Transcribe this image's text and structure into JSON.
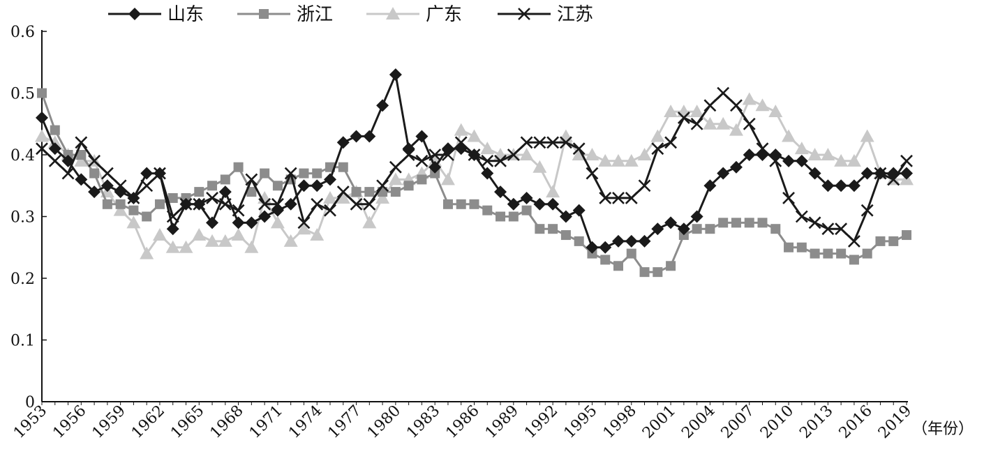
{
  "chart_data": {
    "type": "line",
    "title": "",
    "xlabel": "",
    "x_unit_label": "（年份）",
    "ylabel": "",
    "ylim": [
      0,
      0.6
    ],
    "yticks": [
      "0",
      "0.1",
      "0.2",
      "0.3",
      "0.4",
      "0.5",
      "0.6"
    ],
    "xticks": [
      "1953",
      "1956",
      "1959",
      "1962",
      "1965",
      "1968",
      "1971",
      "1974",
      "1977",
      "1980",
      "1983",
      "1986",
      "1989",
      "1992",
      "1995",
      "1998",
      "2001",
      "2004",
      "2007",
      "2010",
      "2013",
      "2016",
      "2019"
    ],
    "legend_position": "top-left",
    "grid": false,
    "x": [
      1953,
      1954,
      1955,
      1956,
      1957,
      1958,
      1959,
      1960,
      1961,
      1962,
      1963,
      1964,
      1965,
      1966,
      1967,
      1968,
      1969,
      1970,
      1971,
      1972,
      1973,
      1974,
      1975,
      1976,
      1977,
      1978,
      1979,
      1980,
      1981,
      1982,
      1983,
      1984,
      1985,
      1986,
      1987,
      1988,
      1989,
      1990,
      1991,
      1992,
      1993,
      1994,
      1995,
      1996,
      1997,
      1998,
      1999,
      2000,
      2001,
      2002,
      2003,
      2004,
      2005,
      2006,
      2007,
      2008,
      2009,
      2010,
      2011,
      2012,
      2013,
      2014,
      2015,
      2016,
      2017,
      2018,
      2019
    ],
    "series": [
      {
        "name": "山东",
        "color": "#1a1a1a",
        "line_color": "#1a1a1a",
        "marker": "diamond",
        "values": [
          0.46,
          0.41,
          0.39,
          0.36,
          0.34,
          0.35,
          0.34,
          0.33,
          0.37,
          0.37,
          0.28,
          0.32,
          0.32,
          0.29,
          0.34,
          0.29,
          0.29,
          0.3,
          0.31,
          0.32,
          0.35,
          0.35,
          0.36,
          0.42,
          0.43,
          0.43,
          0.48,
          0.53,
          0.41,
          0.43,
          0.38,
          0.41,
          0.41,
          0.4,
          0.37,
          0.34,
          0.32,
          0.33,
          0.32,
          0.32,
          0.3,
          0.31,
          0.25,
          0.25,
          0.26,
          0.26,
          0.26,
          0.28,
          0.29,
          0.28,
          0.3,
          0.35,
          0.37,
          0.38,
          0.4,
          0.4,
          0.4,
          0.39,
          0.39,
          0.37,
          0.35,
          0.35,
          0.35,
          0.37,
          0.37,
          0.37,
          0.37
        ]
      },
      {
        "name": "浙江",
        "color": "#8c8c8c",
        "line_color": "#8c8c8c",
        "marker": "square",
        "values": [
          0.5,
          0.44,
          0.4,
          0.4,
          0.37,
          0.32,
          0.32,
          0.31,
          0.3,
          0.32,
          0.33,
          0.33,
          0.34,
          0.35,
          0.36,
          0.38,
          0.34,
          0.37,
          0.35,
          0.36,
          0.37,
          0.37,
          0.38,
          0.38,
          0.34,
          0.34,
          0.34,
          0.34,
          0.35,
          0.36,
          0.37,
          0.32,
          0.32,
          0.32,
          0.31,
          0.3,
          0.3,
          0.31,
          0.28,
          0.28,
          0.27,
          0.26,
          0.24,
          0.23,
          0.22,
          0.24,
          0.21,
          0.21,
          0.22,
          0.27,
          0.28,
          0.28,
          0.29,
          0.29,
          0.29,
          0.29,
          0.28,
          0.25,
          0.25,
          0.24,
          0.24,
          0.24,
          0.23,
          0.24,
          0.26,
          0.26,
          0.27
        ]
      },
      {
        "name": "广东",
        "color": "#c8c8c8",
        "line_color": "#c8c8c8",
        "marker": "triangle",
        "values": [
          0.43,
          0.42,
          0.4,
          0.39,
          0.39,
          0.34,
          0.31,
          0.29,
          0.24,
          0.27,
          0.25,
          0.25,
          0.27,
          0.26,
          0.26,
          0.27,
          0.25,
          0.33,
          0.29,
          0.26,
          0.28,
          0.27,
          0.33,
          0.33,
          0.34,
          0.29,
          0.33,
          0.36,
          0.36,
          0.37,
          0.39,
          0.36,
          0.44,
          0.43,
          0.41,
          0.4,
          0.4,
          0.4,
          0.38,
          0.34,
          0.43,
          0.4,
          0.4,
          0.39,
          0.39,
          0.39,
          0.4,
          0.43,
          0.47,
          0.47,
          0.47,
          0.45,
          0.45,
          0.44,
          0.49,
          0.48,
          0.47,
          0.43,
          0.41,
          0.4,
          0.4,
          0.39,
          0.39,
          0.43,
          0.37,
          0.36,
          0.36
        ]
      },
      {
        "name": "江苏",
        "color": "#1a1a1a",
        "line_color": "#1a1a1a",
        "marker": "cross",
        "values": [
          0.41,
          0.39,
          0.37,
          0.42,
          0.39,
          0.37,
          0.35,
          0.33,
          0.35,
          0.37,
          0.3,
          0.32,
          0.32,
          0.33,
          0.32,
          0.31,
          0.36,
          0.32,
          0.32,
          0.37,
          0.29,
          0.32,
          0.31,
          0.34,
          0.32,
          0.32,
          0.35,
          0.38,
          0.4,
          0.39,
          0.4,
          0.4,
          0.42,
          0.4,
          0.39,
          0.39,
          0.4,
          0.42,
          0.42,
          0.42,
          0.42,
          0.41,
          0.37,
          0.33,
          0.33,
          0.33,
          0.35,
          0.41,
          0.42,
          0.46,
          0.45,
          0.48,
          0.5,
          0.48,
          0.45,
          0.41,
          0.39,
          0.33,
          0.3,
          0.29,
          0.28,
          0.28,
          0.26,
          0.31,
          0.37,
          0.36,
          0.39
        ]
      }
    ]
  }
}
